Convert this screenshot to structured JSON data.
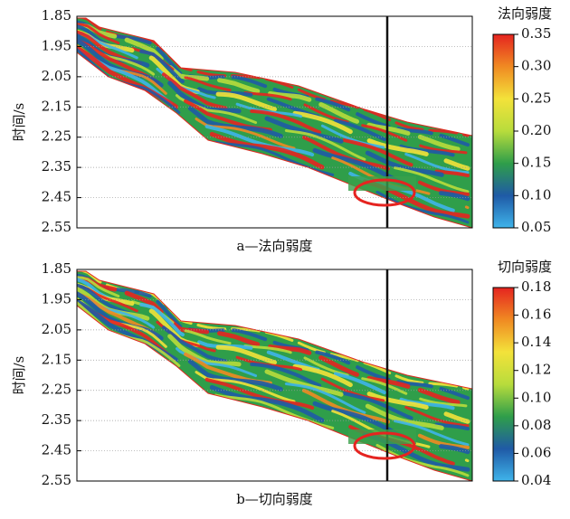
{
  "chart_data": [
    {
      "type": "heatmap",
      "ylabel": "时间/s",
      "caption": "a—法向弱度",
      "ylim": [
        1.85,
        2.55
      ],
      "y_inverted": true,
      "yticks": [
        1.85,
        1.95,
        2.05,
        2.15,
        2.25,
        2.35,
        2.45,
        2.55
      ],
      "grid": true,
      "colorbar_label": "法向弱度",
      "clim": [
        0.05,
        0.35
      ],
      "cticks": [
        0.05,
        {
          "value": 0.1,
          "label": "0.10"
        },
        0.15,
        {
          "value": 0.2,
          "label": "0.20"
        },
        0.25,
        {
          "value": 0.3,
          "label": "0.30"
        },
        0.35
      ],
      "colormap": [
        "#3fb4ea",
        "#1f5aa6",
        "#2f9e4a",
        "#b8dc3c",
        "#f3e23a",
        "#f08a22",
        "#e52420"
      ]
    },
    {
      "type": "heatmap",
      "ylabel": "时间/s",
      "caption": "b—切向弱度",
      "ylim": [
        1.85,
        2.55
      ],
      "y_inverted": true,
      "yticks": [
        1.85,
        1.95,
        2.05,
        2.15,
        2.25,
        2.35,
        2.45,
        2.55
      ],
      "grid": true,
      "colorbar_label": "切向弱度",
      "clim": [
        0.04,
        0.18
      ],
      "cticks": [
        0.04,
        0.06,
        0.08,
        {
          "value": 0.1,
          "label": "0.10"
        },
        0.12,
        0.14,
        0.16,
        0.18
      ],
      "colormap": [
        "#3fb4ea",
        "#1f5aa6",
        "#2f9e4a",
        "#b8dc3c",
        "#f3e23a",
        "#f08a22",
        "#e52420"
      ]
    }
  ]
}
